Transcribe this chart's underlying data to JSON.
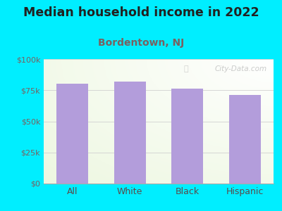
{
  "title": "Median household income in 2022",
  "subtitle": "Bordentown, NJ",
  "categories": [
    "All",
    "White",
    "Black",
    "Hispanic"
  ],
  "values": [
    80000,
    82000,
    76000,
    71000
  ],
  "bar_color": "#b39ddb",
  "background_outer": "#00eeff",
  "title_fontsize": 12.5,
  "subtitle_fontsize": 10,
  "title_color": "#212121",
  "subtitle_color": "#7a6060",
  "tick_label_color": "#7a6060",
  "xlabel_color": "#5a4a4a",
  "ytick_labels": [
    "$0",
    "$25k",
    "$50k",
    "$75k",
    "$100k"
  ],
  "ytick_values": [
    0,
    25000,
    50000,
    75000,
    100000
  ],
  "ylim": [
    0,
    100000
  ],
  "watermark": "City-Data.com",
  "grid_color": "#d0d0d0"
}
